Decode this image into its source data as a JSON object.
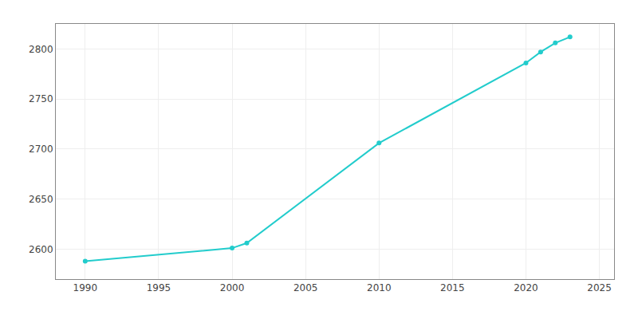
{
  "chart_data": {
    "type": "line",
    "x": [
      1990,
      2000,
      2001,
      2010,
      2020,
      2021,
      2022,
      2023
    ],
    "values": [
      2588,
      2601,
      2606,
      2706,
      2786,
      2797,
      2806,
      2812
    ],
    "color": "#22CCCC",
    "marker": "circle",
    "xlim": [
      1988,
      2026
    ],
    "ylim": [
      2570,
      2825
    ],
    "xticks": [
      1990,
      1995,
      2000,
      2005,
      2010,
      2015,
      2020,
      2025
    ],
    "yticks": [
      2600,
      2650,
      2700,
      2750,
      2800
    ],
    "grid": true
  }
}
